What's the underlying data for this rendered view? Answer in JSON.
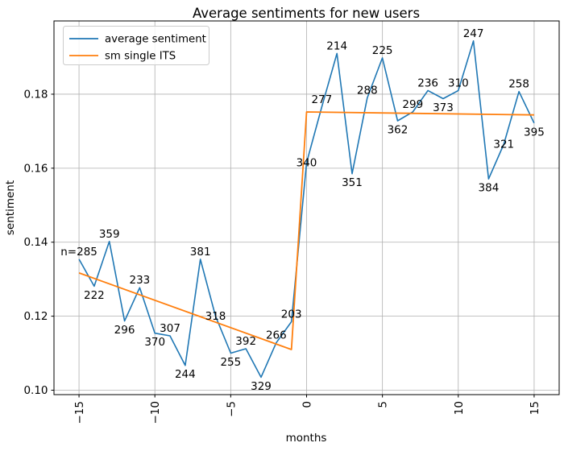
{
  "chart_data": {
    "type": "line",
    "title": "Average sentiments for new users",
    "xlabel": "months",
    "ylabel": "sentiment",
    "grid": true,
    "xlim": [
      -16.65,
      16.65
    ],
    "ylim": [
      0.0988,
      0.1998
    ],
    "x_ticks": [
      -15,
      -10,
      -5,
      0,
      5,
      10,
      15
    ],
    "x_tick_labels": [
      "−15",
      "−10",
      "−5",
      "0",
      "5",
      "10",
      "15"
    ],
    "y_ticks": [
      0.1,
      0.12,
      0.14,
      0.16,
      0.18
    ],
    "y_tick_labels": [
      "0.10",
      "0.12",
      "0.14",
      "0.16",
      "0.18"
    ],
    "x": [
      -15,
      -14,
      -13,
      -12,
      -11,
      -10,
      -9,
      -8,
      -7,
      -6,
      -5,
      -4,
      -3,
      -2,
      -1,
      0,
      1,
      2,
      3,
      4,
      5,
      6,
      7,
      8,
      9,
      10,
      11,
      12,
      13,
      14,
      15
    ],
    "series": [
      {
        "name": "average sentiment",
        "color": "#1f77b4",
        "values": [
          0.1354,
          0.1281,
          0.1402,
          0.1187,
          0.1277,
          0.1154,
          0.1147,
          0.1067,
          0.1354,
          0.12,
          0.11,
          0.1112,
          0.1035,
          0.1128,
          0.1185,
          0.1615,
          0.1765,
          0.191,
          0.1585,
          0.179,
          0.1898,
          0.1728,
          0.1752,
          0.181,
          0.1788,
          0.181,
          0.1944,
          0.1571,
          0.1665,
          0.1807,
          0.1722
        ]
      },
      {
        "name": "sm single ITS",
        "color": "#ff7f0e",
        "points": [
          [
            -15,
            0.1317
          ],
          [
            -1,
            0.111
          ],
          [
            0,
            0.1752
          ],
          [
            15,
            0.1744
          ]
        ]
      }
    ],
    "annotations": [
      {
        "x": -15,
        "label": "n=285",
        "placement": "above"
      },
      {
        "x": -14,
        "label": "222",
        "placement": "below"
      },
      {
        "x": -13,
        "label": "359",
        "placement": "above"
      },
      {
        "x": -12,
        "label": "296",
        "placement": "below"
      },
      {
        "x": -11,
        "label": "233",
        "placement": "above"
      },
      {
        "x": -10,
        "label": "370",
        "placement": "below"
      },
      {
        "x": -9,
        "label": "307",
        "placement": "above"
      },
      {
        "x": -8,
        "label": "244",
        "placement": "below"
      },
      {
        "x": -7,
        "label": "381",
        "placement": "above"
      },
      {
        "x": -6,
        "label": "318",
        "placement": "on"
      },
      {
        "x": -5,
        "label": "255",
        "placement": "below"
      },
      {
        "x": -4,
        "label": "392",
        "placement": "above"
      },
      {
        "x": -3,
        "label": "329",
        "placement": "below"
      },
      {
        "x": -2,
        "label": "266",
        "placement": "above"
      },
      {
        "x": -1,
        "label": "203",
        "placement": "above"
      },
      {
        "x": 0,
        "label": "340",
        "placement": "on"
      },
      {
        "x": 1,
        "label": "277",
        "placement": "above"
      },
      {
        "x": 2,
        "label": "214",
        "placement": "above"
      },
      {
        "x": 3,
        "label": "351",
        "placement": "below"
      },
      {
        "x": 4,
        "label": "288",
        "placement": "above"
      },
      {
        "x": 5,
        "label": "225",
        "placement": "above"
      },
      {
        "x": 6,
        "label": "362",
        "placement": "below"
      },
      {
        "x": 7,
        "label": "299",
        "placement": "above"
      },
      {
        "x": 8,
        "label": "236",
        "placement": "above"
      },
      {
        "x": 9,
        "label": "373",
        "placement": "below"
      },
      {
        "x": 10,
        "label": "310",
        "placement": "above"
      },
      {
        "x": 11,
        "label": "247",
        "placement": "above"
      },
      {
        "x": 12,
        "label": "384",
        "placement": "below"
      },
      {
        "x": 13,
        "label": "321",
        "placement": "on"
      },
      {
        "x": 14,
        "label": "258",
        "placement": "above"
      },
      {
        "x": 15,
        "label": "395",
        "placement": "below"
      }
    ],
    "legend": {
      "position": "upper-left",
      "entries": [
        {
          "label": "average sentiment",
          "color": "#1f77b4"
        },
        {
          "label": "sm single ITS",
          "color": "#ff7f0e"
        }
      ]
    },
    "colors": {
      "grid": "#b0b0b0",
      "spine": "#000000",
      "legend_border": "#cccccc",
      "background": "#ffffff"
    }
  }
}
